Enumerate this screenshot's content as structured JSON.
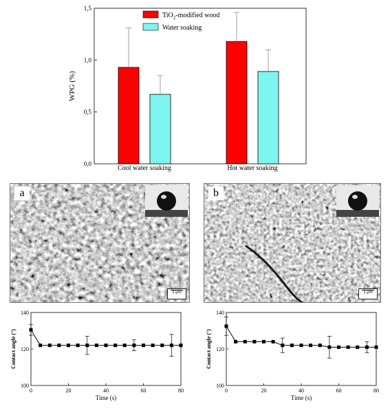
{
  "chart_data": [
    {
      "type": "bar",
      "ylabel": "WPG (%)",
      "categories": [
        "Cool water soaking",
        "Hot water soaking"
      ],
      "series": [
        {
          "name": "TiO2-modified wood",
          "name_main": "TiO",
          "name_sub": "2",
          "name_rest": "-modified wood",
          "color": "#ff0000",
          "values": [
            0.93,
            1.18
          ],
          "errors": [
            0.38,
            0.28
          ]
        },
        {
          "name": "Water soaking",
          "color": "#7ff5ef",
          "values": [
            0.67,
            0.89
          ],
          "errors": [
            0.18,
            0.21
          ]
        }
      ],
      "ylim": [
        0,
        1.5
      ],
      "yticks": [
        "0,0",
        "0,5",
        "1,0",
        "1,5"
      ],
      "legend": "top-left"
    },
    {
      "type": "line",
      "panel": "a",
      "ylabel": "Contact angle (°)",
      "xlabel": "Time (s)",
      "xlim": [
        0,
        80
      ],
      "ylim": [
        100,
        140
      ],
      "xticks": [
        "0",
        "20",
        "40",
        "60",
        "80"
      ],
      "yticks": [
        "100",
        "120",
        "140"
      ],
      "x": [
        0,
        5,
        10,
        15,
        20,
        25,
        30,
        35,
        40,
        45,
        50,
        55,
        60,
        65,
        70,
        75,
        80
      ],
      "y": [
        130.5,
        122,
        122,
        122,
        122,
        122,
        122,
        122,
        122,
        122,
        122,
        122,
        122,
        122,
        122,
        122,
        122
      ],
      "yerr": [
        3,
        0,
        0,
        0,
        0,
        0,
        5,
        0,
        0,
        0,
        0,
        3,
        0,
        0,
        0,
        6,
        0
      ]
    },
    {
      "type": "line",
      "panel": "b",
      "ylabel": "Contact angle (°)",
      "xlabel": "Time (s)",
      "xlim": [
        0,
        80
      ],
      "ylim": [
        100,
        140
      ],
      "xticks": [
        "0",
        "20",
        "40",
        "60",
        "80"
      ],
      "yticks": [
        "100",
        "120",
        "140"
      ],
      "x": [
        0,
        5,
        10,
        15,
        20,
        25,
        30,
        35,
        40,
        45,
        50,
        55,
        60,
        65,
        70,
        75,
        80
      ],
      "y": [
        132.5,
        124,
        124,
        124,
        124,
        124,
        122,
        122,
        122,
        122,
        122,
        121,
        121,
        121,
        121,
        121,
        121
      ],
      "yerr": [
        5,
        0,
        0,
        0,
        0,
        0,
        4,
        0,
        0,
        0,
        0,
        6,
        0,
        0,
        0,
        3,
        0
      ]
    }
  ],
  "sem": [
    {
      "label": "a",
      "scale": "1 μm"
    },
    {
      "label": "b",
      "scale": "1 μm"
    }
  ]
}
